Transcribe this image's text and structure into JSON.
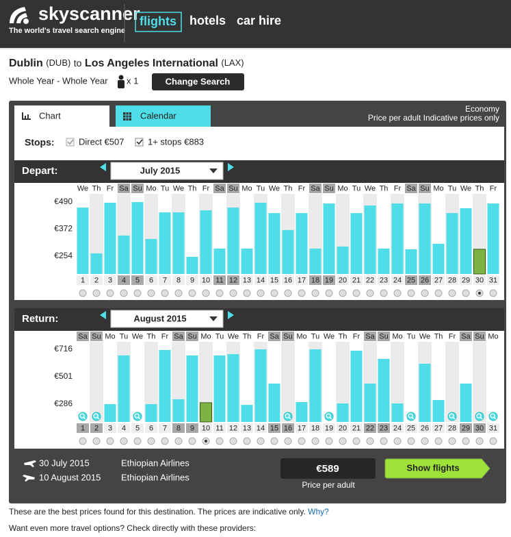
{
  "header": {
    "logo": "skyscanner",
    "tagline": "The world's travel search engine",
    "nav": [
      "flights",
      "hotels",
      "car hire"
    ]
  },
  "search": {
    "origin": "Dublin",
    "origin_code": "(DUB)",
    "joiner": "to",
    "destination": "Los Angeles International",
    "destination_code": "(LAX)",
    "dates": "Whole Year - Whole Year",
    "travellers": "x 1",
    "button": "Change Search"
  },
  "tabs": [
    "Chart",
    "Calendar"
  ],
  "cabin": "Economy",
  "price_note": "Price per adult Indicative prices only",
  "stops": {
    "label": "Stops:",
    "options": [
      "Direct €507",
      "1+ stops €883"
    ]
  },
  "chart_data": [
    {
      "type": "bar",
      "title": "Depart:",
      "subtitle": "July 2015",
      "weekdays": [
        "We",
        "Th",
        "Fr",
        "Sa",
        "Su",
        "Mo",
        "Tu",
        "We",
        "Th",
        "Fr",
        "Sa",
        "Su",
        "Mo",
        "Tu",
        "We",
        "Th",
        "Fr",
        "Sa",
        "Su",
        "Mo",
        "Tu",
        "We",
        "Th",
        "Fr",
        "Sa",
        "Su",
        "Mo",
        "Tu",
        "We",
        "Th",
        "Fr"
      ],
      "categories": [
        "1",
        "2",
        "3",
        "4",
        "5",
        "6",
        "7",
        "8",
        "9",
        "10",
        "11",
        "12",
        "13",
        "14",
        "15",
        "16",
        "17",
        "18",
        "19",
        "20",
        "21",
        "22",
        "23",
        "24",
        "25",
        "26",
        "27",
        "28",
        "29",
        "30",
        "31"
      ],
      "values": [
        466,
        266,
        487,
        344,
        490,
        329,
        445,
        445,
        251,
        454,
        287,
        466,
        287,
        487,
        442,
        368,
        442,
        287,
        484,
        296,
        442,
        475,
        287,
        484,
        284,
        484,
        308,
        442,
        463,
        284,
        484
      ],
      "ylim": [
        176,
        526
      ],
      "yticks": [
        {
          "value": 490,
          "label": "€490"
        },
        {
          "value": 372,
          "label": "€372"
        },
        {
          "value": 254,
          "label": "€254"
        }
      ],
      "color": "#4fdde8",
      "highlight_color": "#7cb342",
      "selected": "30"
    },
    {
      "type": "bar",
      "title": "Return:",
      "subtitle": "August 2015",
      "weekdays": [
        "Sa",
        "Su",
        "Mo",
        "Tu",
        "We",
        "Th",
        "Fr",
        "Sa",
        "Su",
        "Mo",
        "Tu",
        "We",
        "Th",
        "Fr",
        "Sa",
        "Su",
        "Mo",
        "Tu",
        "We",
        "Th",
        "Fr",
        "Sa",
        "Su",
        "Mo",
        "Tu",
        "We",
        "Th",
        "Fr",
        "Sa",
        "Su",
        "Mo"
      ],
      "categories": [
        "1",
        "2",
        "3",
        "4",
        "5",
        "6",
        "7",
        "8",
        "9",
        "10",
        "11",
        "12",
        "13",
        "14",
        "15",
        "16",
        "17",
        "18",
        "19",
        "20",
        "21",
        "22",
        "23",
        "24",
        "25",
        "26",
        "27",
        "28",
        "29",
        "30",
        "31"
      ],
      "values": [
        null,
        null,
        286,
        668,
        null,
        286,
        711,
        324,
        668,
        297,
        668,
        678,
        280,
        716,
        447,
        null,
        302,
        716,
        null,
        291,
        705,
        447,
        641,
        291,
        null,
        603,
        318,
        null,
        447,
        null,
        null
      ],
      "ylim": [
        146,
        775
      ],
      "yticks": [
        {
          "value": 716,
          "label": "€716"
        },
        {
          "value": 501,
          "label": "€501"
        },
        {
          "value": 286,
          "label": "€286"
        }
      ],
      "color": "#4fdde8",
      "highlight_color": "#7cb342",
      "selected": "10"
    }
  ],
  "itinerary": [
    {
      "date": "30 July 2015",
      "airline": "Ethiopian Airlines"
    },
    {
      "date": "10 August 2015",
      "airline": "Ethiopian Airlines"
    }
  ],
  "price": {
    "amount": "€589",
    "note": "Price per adult",
    "button": "Show flights"
  },
  "footer": {
    "text": "These are the best prices found for this destination. The prices are indicative only.",
    "link": "Why?",
    "more": "Want even more travel options? Check directly with these providers:"
  }
}
